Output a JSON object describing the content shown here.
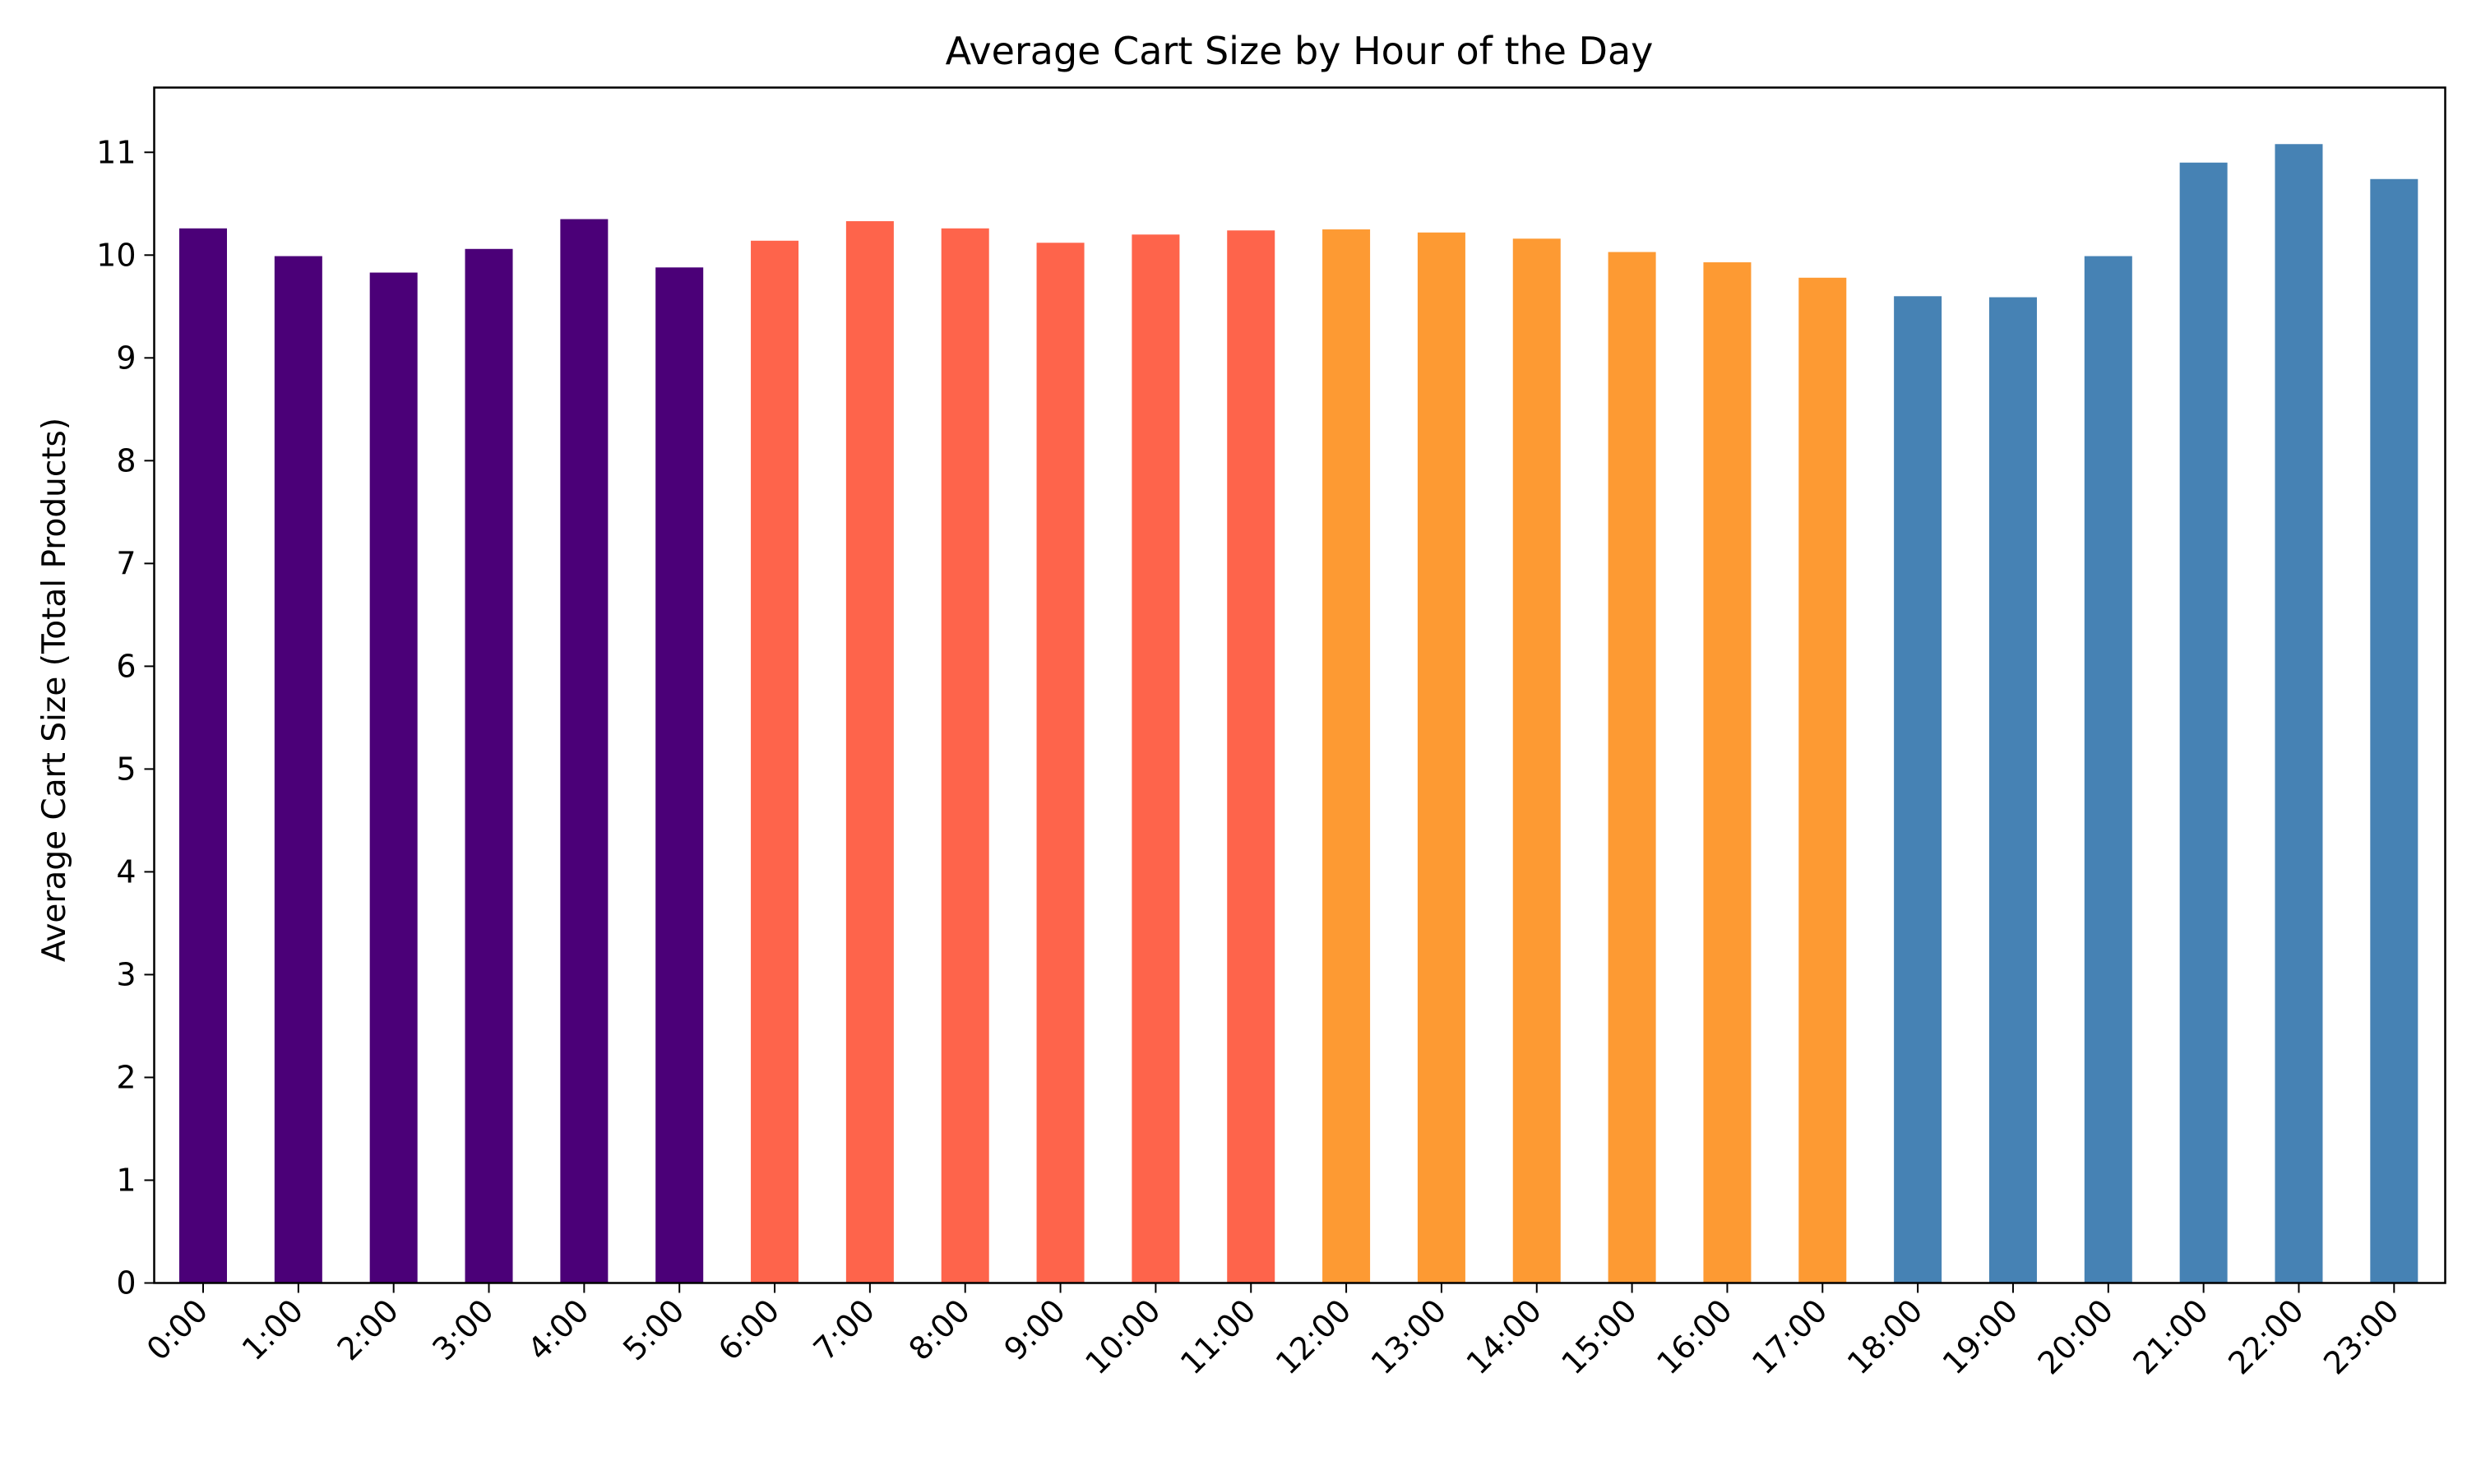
{
  "chart_data": {
    "type": "bar",
    "title": "Average Cart Size by Hour of the Day",
    "xlabel": "",
    "ylabel": "Average Cart Size (Total Products)",
    "categories": [
      "0:00",
      "1:00",
      "2:00",
      "3:00",
      "4:00",
      "5:00",
      "6:00",
      "7:00",
      "8:00",
      "9:00",
      "10:00",
      "11:00",
      "12:00",
      "13:00",
      "14:00",
      "15:00",
      "16:00",
      "17:00",
      "18:00",
      "19:00",
      "20:00",
      "21:00",
      "22:00",
      "23:00"
    ],
    "values": [
      10.26,
      9.99,
      9.83,
      10.06,
      10.35,
      9.88,
      10.14,
      10.33,
      10.26,
      10.12,
      10.2,
      10.24,
      10.25,
      10.22,
      10.16,
      10.03,
      9.93,
      9.78,
      9.6,
      9.59,
      9.99,
      10.9,
      11.08,
      10.74
    ],
    "bar_colors": [
      "#4b0078",
      "#4b0078",
      "#4b0078",
      "#4b0078",
      "#4b0078",
      "#4b0078",
      "#fe644b",
      "#fe644b",
      "#fe644b",
      "#fe644b",
      "#fe644b",
      "#fe644b",
      "#fd9a33",
      "#fd9a33",
      "#fd9a33",
      "#fd9a33",
      "#fd9a33",
      "#fd9a33",
      "#4682b4",
      "#4682b4",
      "#4682b4",
      "#4682b4",
      "#4682b4",
      "#4682b4"
    ],
    "yticks": [
      "0",
      "1",
      "2",
      "3",
      "4",
      "5",
      "6",
      "7",
      "8",
      "9",
      "10",
      "11"
    ],
    "ylim": [
      0,
      11.63
    ],
    "grid": false,
    "legend": "none"
  }
}
